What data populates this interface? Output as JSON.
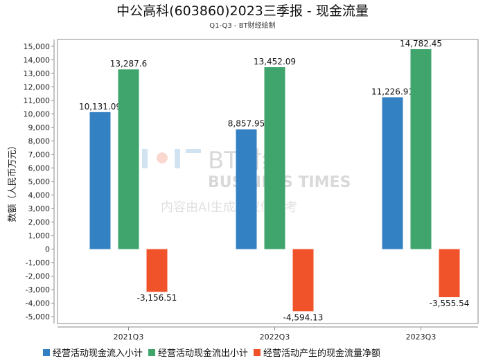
{
  "chart_data": {
    "type": "bar",
    "title": "中公高科(603860)2023三季报 - 现金流量",
    "subtitle": "Q1-Q3 - BT财经绘制",
    "xlabel": "",
    "ylabel": "数额（人民币万元）",
    "ylim": [
      -5500,
      15500
    ],
    "yticks": [
      -5000,
      -4000,
      -3000,
      -2000,
      -1000,
      0,
      1000,
      2000,
      3000,
      4000,
      5000,
      6000,
      7000,
      8000,
      9000,
      10000,
      11000,
      12000,
      13000,
      14000,
      15000
    ],
    "grid": false,
    "legend_position": "bottom",
    "categories": [
      "2021Q3",
      "2022Q3",
      "2023Q3"
    ],
    "series": [
      {
        "name": "经营活动现金流入小计",
        "color": "#3380c2",
        "values": [
          10131.09,
          8857.95,
          11226.91
        ],
        "labels": [
          "10,131.09",
          "8,857.95",
          "11,226.91"
        ]
      },
      {
        "name": "经营活动现金流出小计",
        "color": "#3fa56d",
        "values": [
          13287.6,
          13452.09,
          14782.45
        ],
        "labels": [
          "13,287.6",
          "13,452.09",
          "14,782.45"
        ]
      },
      {
        "name": "经营活动产生的现金流量净额",
        "color": "#f0532a",
        "values": [
          -3156.51,
          -4594.13,
          -3555.54
        ],
        "labels": [
          "-3,156.51",
          "-4,594.13",
          "-3,555.54"
        ]
      }
    ],
    "watermark": {
      "logo": "BT财经",
      "sub": "BUSINESS TIMES",
      "note": "内容由AI生成，仅供参考"
    }
  }
}
